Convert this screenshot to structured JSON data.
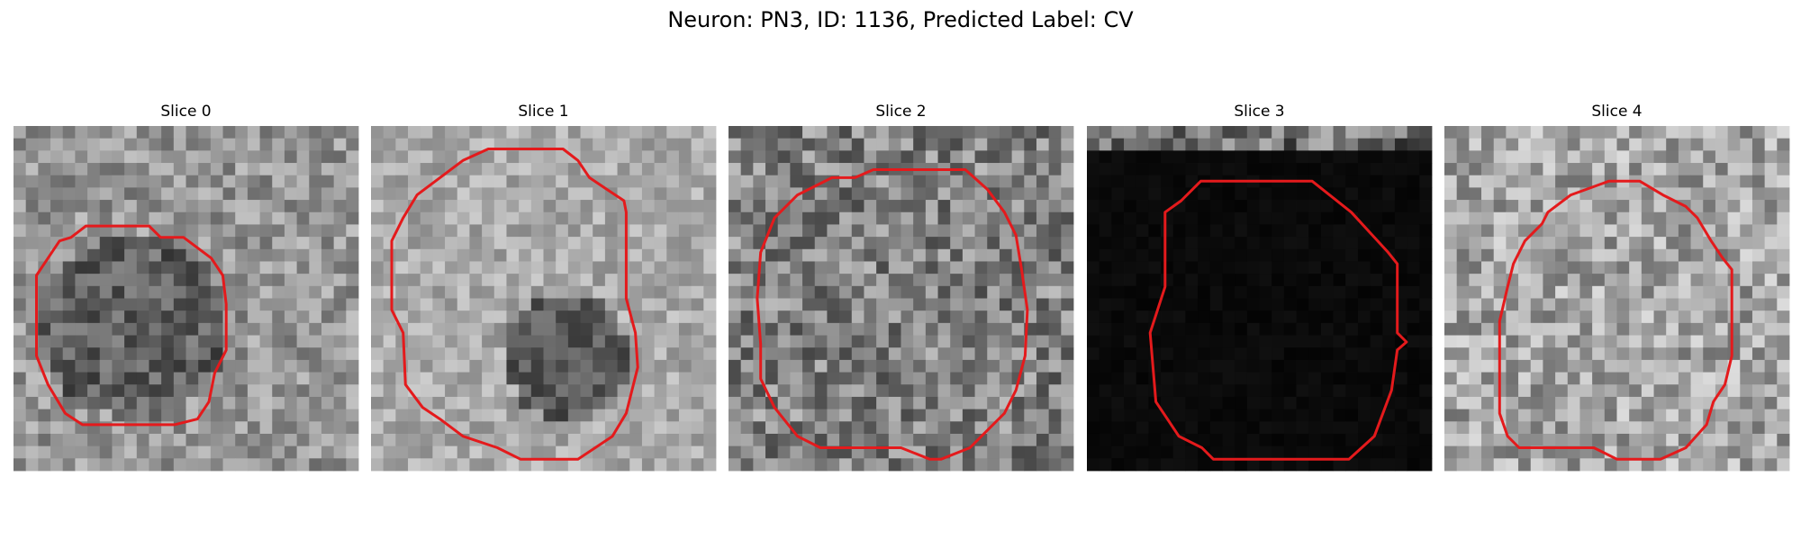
{
  "title": "Neuron: PN3, ID: 1136, Predicted Label: CV",
  "panels": [
    {
      "title": "Slice 0"
    },
    {
      "title": "Slice 1"
    },
    {
      "title": "Slice 2"
    },
    {
      "title": "Slice 3"
    },
    {
      "title": "Slice 4"
    }
  ]
}
